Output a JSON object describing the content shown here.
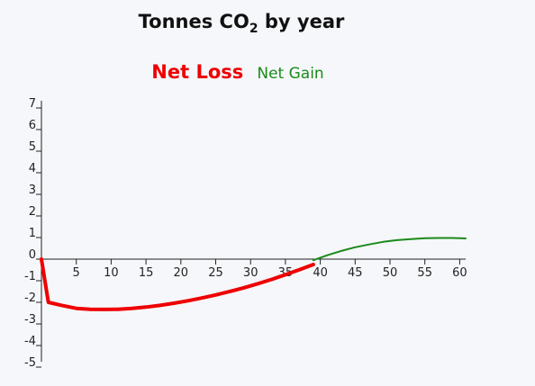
{
  "chart_data": {
    "type": "line",
    "title_main": "Tonnes CO",
    "title_sub": "2",
    "title_rest": " by year",
    "legend": [
      {
        "label": "Net Loss",
        "color": "#ee0000"
      },
      {
        "label": "Net Gain",
        "color": "#1a8a1a"
      }
    ],
    "x_ticks": [
      "5",
      "10",
      "15",
      "20",
      "25",
      "30",
      "35",
      "40",
      "45",
      "50",
      "55",
      "60"
    ],
    "y_ticks": [
      "7",
      "6",
      "5",
      "4",
      "3",
      "2",
      "1",
      "0",
      "-1",
      "-2",
      "-3",
      "-4",
      "-5"
    ],
    "xlim": [
      0,
      60
    ],
    "ylim": [
      -5,
      7
    ],
    "series": [
      {
        "name": "Net Loss",
        "color": "#ee0000",
        "x": [
          0,
          1,
          3,
          5,
          7,
          9,
          11,
          13,
          15,
          17,
          19,
          21,
          23,
          25,
          27,
          29,
          31,
          33,
          35,
          37,
          39
        ],
        "y": [
          0,
          -2.0,
          -2.15,
          -2.28,
          -2.32,
          -2.33,
          -2.32,
          -2.28,
          -2.22,
          -2.14,
          -2.04,
          -1.93,
          -1.8,
          -1.66,
          -1.5,
          -1.33,
          -1.14,
          -0.94,
          -0.72,
          -0.49,
          -0.25
        ]
      },
      {
        "name": "Net Gain",
        "color": "#1a8a1a",
        "x": [
          39,
          41,
          43,
          45,
          47,
          49,
          51,
          53,
          55,
          57,
          59,
          61
        ],
        "y": [
          -0.05,
          0.18,
          0.38,
          0.55,
          0.68,
          0.8,
          0.88,
          0.93,
          0.97,
          0.98,
          0.98,
          0.96
        ]
      }
    ]
  }
}
